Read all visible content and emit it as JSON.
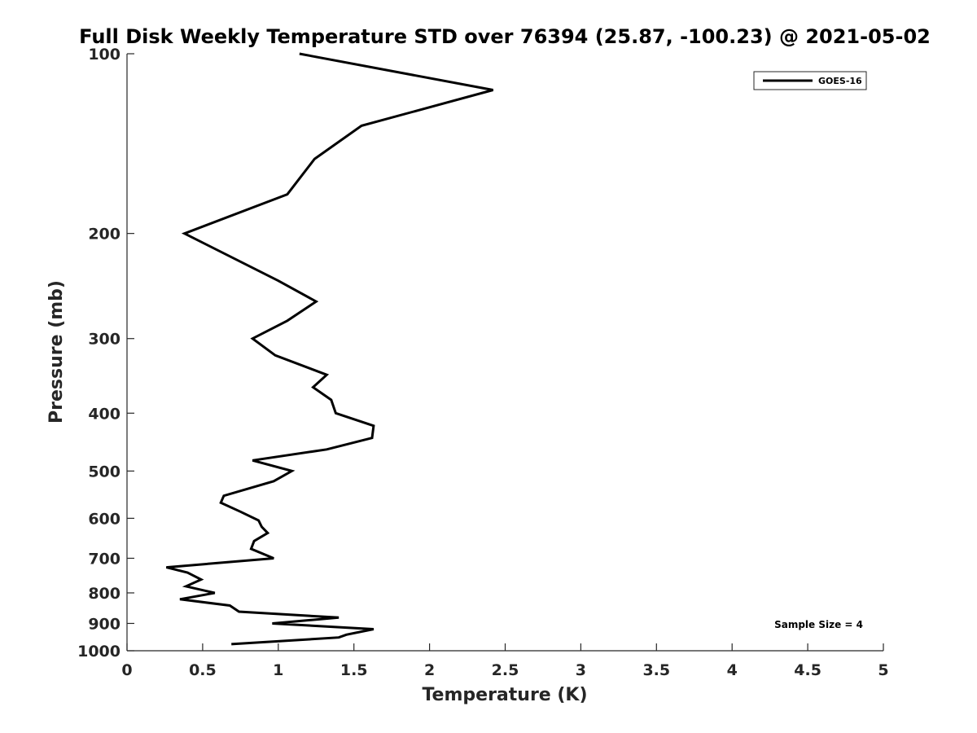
{
  "chart_data": {
    "type": "line",
    "title": "Full Disk Weekly Temperature STD over 76394 (25.87, -100.23) @ 2021-05-02",
    "xlabel": "Temperature (K)",
    "ylabel": "Pressure (mb)",
    "xlim": [
      0,
      5
    ],
    "ylim": [
      100,
      1000
    ],
    "y_scale": "log",
    "y_reversed": true,
    "x_ticks": [
      "0",
      "0.5",
      "1",
      "1.5",
      "2",
      "2.5",
      "3",
      "3.5",
      "4",
      "4.5",
      "5"
    ],
    "y_ticks": [
      "100",
      "200",
      "300",
      "400",
      "500",
      "600",
      "700",
      "800",
      "900",
      "1000"
    ],
    "grid": false,
    "legend": {
      "position": "top-right",
      "entries": [
        "GOES-16"
      ]
    },
    "annotation": "Sample Size = 4",
    "series": [
      {
        "name": "GOES-16",
        "color": "#000000",
        "points": [
          [
            1.14,
            100
          ],
          [
            2.42,
            115
          ],
          [
            1.55,
            132
          ],
          [
            1.24,
            150
          ],
          [
            1.06,
            172
          ],
          [
            0.38,
            200
          ],
          [
            1.0,
            240
          ],
          [
            1.25,
            260
          ],
          [
            1.06,
            280
          ],
          [
            0.83,
            300
          ],
          [
            0.98,
            320
          ],
          [
            1.32,
            345
          ],
          [
            1.23,
            362
          ],
          [
            1.35,
            380
          ],
          [
            1.38,
            400
          ],
          [
            1.63,
            420
          ],
          [
            1.62,
            440
          ],
          [
            1.32,
            460
          ],
          [
            0.83,
            480
          ],
          [
            1.09,
            500
          ],
          [
            0.97,
            520
          ],
          [
            0.64,
            550
          ],
          [
            0.62,
            565
          ],
          [
            0.75,
            585
          ],
          [
            0.87,
            605
          ],
          [
            0.89,
            620
          ],
          [
            0.93,
            635
          ],
          [
            0.84,
            655
          ],
          [
            0.82,
            675
          ],
          [
            0.97,
            700
          ],
          [
            0.26,
            725
          ],
          [
            0.4,
            740
          ],
          [
            0.49,
            760
          ],
          [
            0.39,
            780
          ],
          [
            0.58,
            800
          ],
          [
            0.35,
            820
          ],
          [
            0.68,
            840
          ],
          [
            0.74,
            860
          ],
          [
            1.4,
            880
          ],
          [
            0.96,
            900
          ],
          [
            1.63,
            920
          ],
          [
            1.45,
            940
          ],
          [
            1.4,
            950
          ],
          [
            0.69,
            975
          ]
        ]
      }
    ]
  }
}
